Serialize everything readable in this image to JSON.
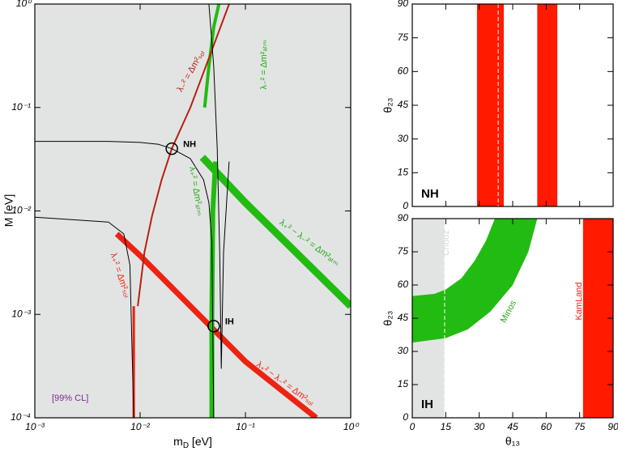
{
  "chart_data": [
    {
      "type": "line",
      "log_x": true,
      "log_y": true,
      "xlabel": {
        "base": "m",
        "sub": "D",
        "unit": " [eV]"
      },
      "ylabel": "M [eV]",
      "xlim": [
        0.001,
        1
      ],
      "ylim": [
        0.0001,
        1
      ],
      "xticks": [
        {
          "value": 0.001,
          "label": "10⁻³"
        },
        {
          "value": 0.01,
          "label": "10⁻²"
        },
        {
          "value": 0.1,
          "label": "10⁻¹"
        },
        {
          "value": 1,
          "label": "10⁰"
        }
      ],
      "yticks": [
        {
          "value": 0.0001,
          "label": "10⁻⁴"
        },
        {
          "value": 0.001,
          "label": "10⁻³"
        },
        {
          "value": 0.01,
          "label": "10⁻²"
        },
        {
          "value": 0.1,
          "label": "10⁻¹"
        },
        {
          "value": 1,
          "label": "10⁰"
        }
      ],
      "background": "#e2e4e4",
      "series": [
        {
          "color": "#ee2211",
          "line_width": 7,
          "x": [
            0.006,
            0.01,
            0.1,
            0.47
          ],
          "values": [
            0.006,
            0.0037,
            0.00035,
            0.0001
          ]
        },
        {
          "color": "#ee2211",
          "line_width": 3,
          "x": [
            0.0087,
            0.0087
          ],
          "values": [
            0.0001,
            0.0012
          ]
        },
        {
          "color": "#22bb11",
          "line_width": 9,
          "x": [
            0.039,
            0.1,
            0.3,
            1
          ],
          "values": [
            0.033,
            0.012,
            0.004,
            0.0012
          ]
        },
        {
          "color": "#22bb11",
          "line_width": 6,
          "x": [
            0.048,
            0.048,
            0.049,
            0.052
          ],
          "values": [
            0.0001,
            0.001,
            0.01,
            0.03
          ]
        },
        {
          "color": "#22bb11",
          "line_width": 4,
          "x": [
            0.041,
            0.045,
            0.05,
            0.056
          ],
          "values": [
            0.1,
            0.25,
            0.6,
            1
          ]
        },
        {
          "color": "#b82010",
          "line_width": 2,
          "x": [
            0.0095,
            0.011,
            0.013,
            0.016,
            0.02,
            0.03,
            0.045,
            0.07
          ],
          "values": [
            0.0012,
            0.004,
            0.009,
            0.02,
            0.04,
            0.1,
            0.3,
            1
          ]
        },
        {
          "color": "#000000",
          "line_width": 1,
          "x": [
            0.001,
            0.005,
            0.01,
            0.015,
            0.02,
            0.03,
            0.04,
            0.045,
            0.048,
            0.05
          ],
          "values": [
            0.047,
            0.047,
            0.046,
            0.044,
            0.04,
            0.032,
            0.02,
            0.012,
            0.005,
            0.0001
          ]
        },
        {
          "color": "#000000",
          "line_width": 1,
          "x": [
            0.001,
            0.005,
            0.007,
            0.008,
            0.0087
          ],
          "values": [
            0.0087,
            0.0078,
            0.006,
            0.003,
            0.0001
          ]
        },
        {
          "color": "#000000",
          "line_width": 1,
          "x": [
            0.045,
            0.05,
            0.054,
            0.057,
            0.059,
            0.062,
            0.07
          ],
          "values": [
            1,
            0.25,
            0.04,
            0.004,
            0.0003,
            0.004,
            0.03
          ]
        }
      ],
      "points": [
        {
          "x": 0.02,
          "y": 0.04,
          "label": "NH"
        },
        {
          "x": 0.05,
          "y": 0.00077,
          "label": "IH"
        }
      ],
      "annotations": [
        "λ₋² = Δm²ₛₒₗ",
        "λ₋² = Δm²ₐₜₘ",
        "λ₊² = Δm²ₐₜₘ",
        "λ₊² − λ₋² = Δm²ₐₜₘ",
        "λ₊² = Δm²ₛₒₗ",
        "λ₊² − λ₋² = Δm²ₛₒₗ",
        "[99% CL]"
      ]
    },
    {
      "type": "regions",
      "ylabel": "θ₂₃",
      "xlim": [
        0,
        90
      ],
      "ylim": [
        0,
        90
      ],
      "xticks": [
        0,
        15,
        30,
        45,
        60,
        75,
        90
      ],
      "yticks": [
        0,
        15,
        30,
        45,
        60,
        75,
        90
      ],
      "xtick_labels": false,
      "bands": [
        {
          "color": "#ff1a00",
          "x": [
            29,
            41
          ]
        },
        {
          "color": "#ff1a00",
          "x": [
            56,
            65
          ]
        }
      ],
      "dashed_x": [
        38.5
      ],
      "label": "NH"
    },
    {
      "type": "regions",
      "xlabel": "θ₁₃",
      "ylabel": "θ₂₃",
      "xlim": [
        0,
        90
      ],
      "ylim": [
        0,
        90
      ],
      "xticks": [
        0,
        15,
        30,
        45,
        60,
        75,
        90
      ],
      "yticks": [
        0,
        15,
        30,
        45,
        60,
        75,
        90
      ],
      "xtick_labels": true,
      "bands": [
        {
          "color": "#e2e4e4",
          "x": [
            0,
            14.5
          ],
          "label": "Chooz"
        },
        {
          "color": "#ff1a00",
          "x": [
            76.5,
            90
          ],
          "label": "KamLand"
        }
      ],
      "dashed_x": [
        14.5
      ],
      "areas": [
        {
          "color": "#22bb11",
          "label": "Minos",
          "upper": {
            "x": [
              0,
              10,
              15,
              22,
              28,
              33,
              37
            ],
            "values": [
              55,
              56,
              58,
              63,
              71,
              80,
              90
            ]
          },
          "lower": {
            "x": [
              0,
              15,
              25,
              35,
              45,
              52,
              56
            ],
            "values": [
              34,
              36,
              40,
              48,
              60,
              75,
              90
            ]
          }
        }
      ],
      "label": "IH"
    }
  ]
}
